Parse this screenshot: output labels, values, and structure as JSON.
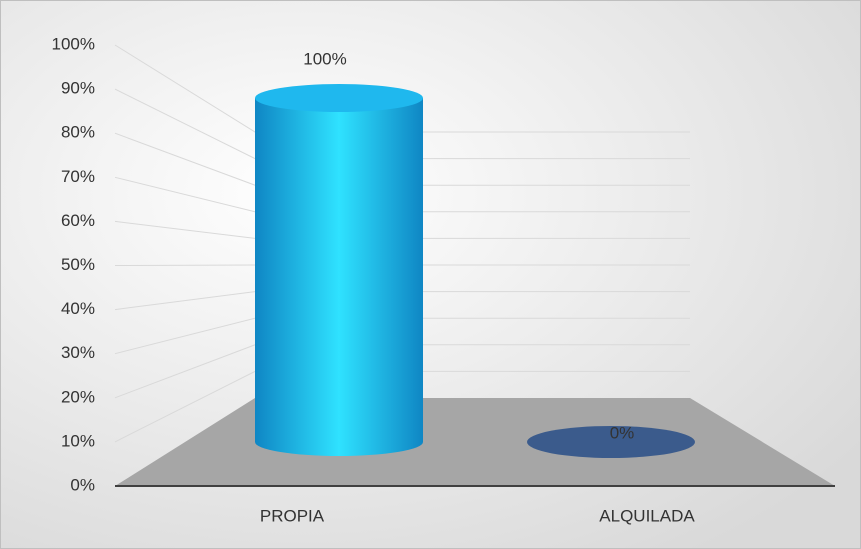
{
  "chart_data": {
    "type": "cylinder",
    "categories": [
      "PROPIA",
      "ALQUILADA"
    ],
    "values": [
      100,
      0
    ],
    "value_labels": [
      "100%",
      "0%"
    ],
    "colors": [
      "#1aa6df",
      "#3b5b8c"
    ],
    "ylim": [
      0,
      100
    ],
    "yticks": [
      {
        "value": 0,
        "label": "0%"
      },
      {
        "value": 10,
        "label": "10%"
      },
      {
        "value": 20,
        "label": "20%"
      },
      {
        "value": 30,
        "label": "30%"
      },
      {
        "value": 40,
        "label": "40%"
      },
      {
        "value": 50,
        "label": "50%"
      },
      {
        "value": 60,
        "label": "60%"
      },
      {
        "value": 70,
        "label": "70%"
      },
      {
        "value": 80,
        "label": "80%"
      },
      {
        "value": 90,
        "label": "90%"
      },
      {
        "value": 100,
        "label": "100%"
      }
    ],
    "grid": true
  }
}
